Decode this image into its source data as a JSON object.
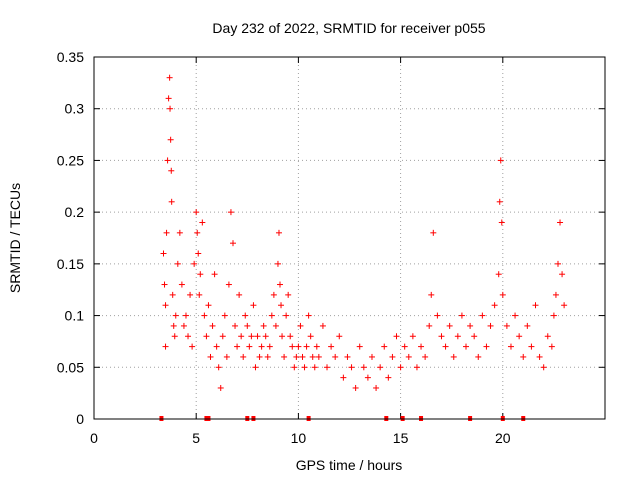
{
  "chart_data": {
    "type": "scatter",
    "title": "Day 232 of 2022, SRMTID for receiver p055",
    "xlabel": "GPS time / hours",
    "ylabel": "SRMTID / TECUs",
    "xlim": [
      0,
      25
    ],
    "ylim": [
      0,
      0.35
    ],
    "xticks": [
      0,
      5,
      10,
      15,
      20
    ],
    "xtick_labels": [
      "0",
      "5",
      "10",
      "15",
      "20"
    ],
    "yticks": [
      0,
      0.05,
      0.1,
      0.15,
      0.2,
      0.25,
      0.3,
      0.35
    ],
    "ytick_labels": [
      "0",
      "0.05",
      "0.1",
      "0.15",
      "0.2",
      "0.25",
      "0.3",
      "0.35"
    ],
    "grid": true,
    "marker": "+",
    "colors": {
      "series": "#ff0000",
      "grid": "#a0a0a0",
      "axis": "#000000"
    },
    "series": [
      {
        "name": "SRMTID",
        "x": [
          3.4,
          3.45,
          3.5,
          3.5,
          3.55,
          3.6,
          3.65,
          3.7,
          3.72,
          3.75,
          3.78,
          3.8,
          3.85,
          3.9,
          3.95,
          4.0,
          4.1,
          4.2,
          4.3,
          4.4,
          4.5,
          4.6,
          4.7,
          4.8,
          4.9,
          5.0,
          5.05,
          5.1,
          5.15,
          5.2,
          5.3,
          5.4,
          5.5,
          5.6,
          5.7,
          5.8,
          5.9,
          6.0,
          6.1,
          6.2,
          6.3,
          6.4,
          6.5,
          6.6,
          6.7,
          6.8,
          6.9,
          7.0,
          7.1,
          7.2,
          7.3,
          7.4,
          7.5,
          7.6,
          7.7,
          7.8,
          7.9,
          8.0,
          8.1,
          8.2,
          8.3,
          8.4,
          8.5,
          8.6,
          8.7,
          8.8,
          8.9,
          9.0,
          9.05,
          9.1,
          9.15,
          9.2,
          9.3,
          9.4,
          9.5,
          9.6,
          9.7,
          9.8,
          9.9,
          10.0,
          10.1,
          10.2,
          10.3,
          10.4,
          10.5,
          10.6,
          10.7,
          10.8,
          10.9,
          11.0,
          11.2,
          11.4,
          11.6,
          11.8,
          12.0,
          12.2,
          12.4,
          12.6,
          12.8,
          13.0,
          13.2,
          13.4,
          13.6,
          13.8,
          14.0,
          14.2,
          14.4,
          14.6,
          14.8,
          15.0,
          15.2,
          15.4,
          15.6,
          15.8,
          16.0,
          16.2,
          16.4,
          16.5,
          16.6,
          16.8,
          17.0,
          17.2,
          17.4,
          17.6,
          17.8,
          18.0,
          18.2,
          18.4,
          18.6,
          18.8,
          19.0,
          19.2,
          19.4,
          19.6,
          19.8,
          19.85,
          19.9,
          19.95,
          20.0,
          20.2,
          20.4,
          20.6,
          20.8,
          21.0,
          21.2,
          21.4,
          21.6,
          21.8,
          22.0,
          22.2,
          22.4,
          22.5,
          22.6,
          22.7,
          22.8,
          22.9,
          23.0
        ],
        "y": [
          0.16,
          0.13,
          0.07,
          0.11,
          0.18,
          0.25,
          0.31,
          0.33,
          0.3,
          0.27,
          0.24,
          0.21,
          0.12,
          0.09,
          0.08,
          0.1,
          0.15,
          0.18,
          0.13,
          0.09,
          0.1,
          0.08,
          0.12,
          0.07,
          0.15,
          0.2,
          0.18,
          0.16,
          0.12,
          0.14,
          0.19,
          0.1,
          0.08,
          0.11,
          0.06,
          0.09,
          0.14,
          0.07,
          0.05,
          0.03,
          0.08,
          0.1,
          0.06,
          0.13,
          0.2,
          0.17,
          0.09,
          0.07,
          0.12,
          0.08,
          0.06,
          0.1,
          0.09,
          0.07,
          0.08,
          0.11,
          0.05,
          0.08,
          0.06,
          0.07,
          0.09,
          0.08,
          0.06,
          0.07,
          0.1,
          0.12,
          0.09,
          0.15,
          0.18,
          0.13,
          0.11,
          0.08,
          0.06,
          0.1,
          0.12,
          0.08,
          0.07,
          0.05,
          0.06,
          0.07,
          0.09,
          0.06,
          0.05,
          0.07,
          0.1,
          0.08,
          0.06,
          0.05,
          0.07,
          0.06,
          0.09,
          0.05,
          0.07,
          0.06,
          0.08,
          0.04,
          0.06,
          0.05,
          0.03,
          0.07,
          0.05,
          0.04,
          0.06,
          0.03,
          0.05,
          0.07,
          0.04,
          0.06,
          0.08,
          0.05,
          0.07,
          0.06,
          0.08,
          0.05,
          0.07,
          0.06,
          0.09,
          0.12,
          0.18,
          0.1,
          0.08,
          0.07,
          0.09,
          0.06,
          0.08,
          0.1,
          0.07,
          0.09,
          0.08,
          0.06,
          0.1,
          0.07,
          0.09,
          0.11,
          0.14,
          0.21,
          0.25,
          0.19,
          0.12,
          0.09,
          0.07,
          0.1,
          0.08,
          0.06,
          0.09,
          0.07,
          0.11,
          0.06,
          0.05,
          0.08,
          0.07,
          0.1,
          0.12,
          0.15,
          0.19,
          0.14,
          0.11
        ]
      }
    ],
    "gap_markers_x": [
      3.3,
      5.5,
      5.6,
      7.5,
      7.8,
      10.5,
      14.3,
      15.1,
      16.0,
      18.4,
      20.0,
      21.0
    ]
  }
}
